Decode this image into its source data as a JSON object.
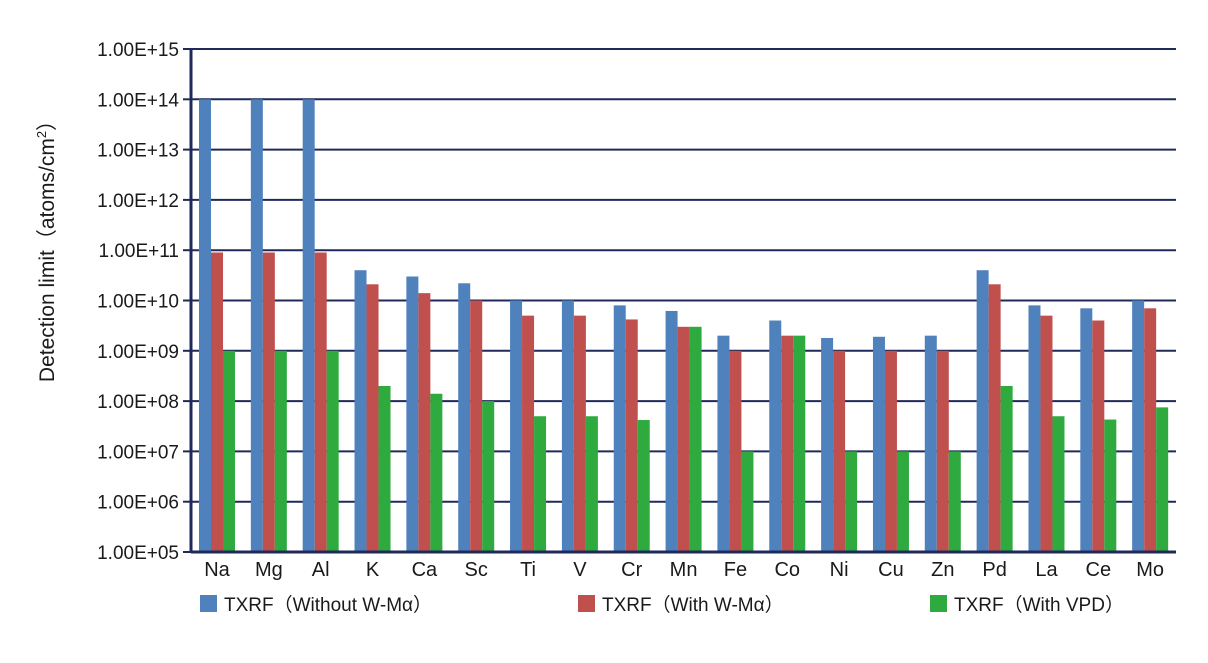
{
  "chart_data": {
    "type": "bar",
    "scale": "log",
    "ylabel": "Detection limit（atoms/cm",
    "ylabel_superscript": "2",
    "ylabel_close": "）",
    "xlabel": "",
    "ylim": [
      100000,
      1000000000000000
    ],
    "y_ticks": [
      {
        "label": "1.00E+05",
        "value": 100000
      },
      {
        "label": "1.00E+06",
        "value": 1000000
      },
      {
        "label": "1.00E+07",
        "value": 10000000
      },
      {
        "label": "1.00E+08",
        "value": 100000000
      },
      {
        "label": "1.00E+09",
        "value": 1000000000
      },
      {
        "label": "1.00E+10",
        "value": 10000000000
      },
      {
        "label": "1.00E+11",
        "value": 100000000000
      },
      {
        "label": "1.00E+12",
        "value": 1000000000000
      },
      {
        "label": "1.00E+13",
        "value": 10000000000000
      },
      {
        "label": "1.00E+14",
        "value": 100000000000000
      },
      {
        "label": "1.00E+15",
        "value": 1000000000000000
      }
    ],
    "grid": true,
    "legend_position": "bottom",
    "categories": [
      "Na",
      "Mg",
      "Al",
      "K",
      "Ca",
      "Sc",
      "Ti",
      "V",
      "Cr",
      "Mn",
      "Fe",
      "Co",
      "Ni",
      "Cu",
      "Zn",
      "Pd",
      "La",
      "Ce",
      "Mo"
    ],
    "series": [
      {
        "name": "TXRF（Without W-Mα）",
        "color": "#4f81bd",
        "values": [
          100000000000000.0,
          100000000000000.0,
          100000000000000.0,
          40000000000.0,
          30000000000.0,
          22000000000.0,
          10000000000.0,
          10000000000.0,
          8000000000.0,
          6200000000.0,
          2000000000.0,
          4000000000.0,
          1800000000.0,
          1900000000.0,
          2000000000.0,
          40000000000.0,
          8000000000.0,
          7000000000.0,
          10000000000.0
        ]
      },
      {
        "name": "TXRF（With W-Mα）",
        "color": "#c0504d",
        "values": [
          90000000000.0,
          90000000000.0,
          90000000000.0,
          21000000000.0,
          14000000000.0,
          10000000000.0,
          5000000000.0,
          5000000000.0,
          4200000000.0,
          3000000000.0,
          1000000000.0,
          2000000000.0,
          1000000000.0,
          1000000000.0,
          1000000000.0,
          21000000000.0,
          5000000000.0,
          4000000000.0,
          7000000000.0
        ]
      },
      {
        "name": "TXRF（With VPD）",
        "color": "#2eaa3f",
        "values": [
          1000000000.0,
          1000000000.0,
          1000000000.0,
          200000000.0,
          140000000.0,
          100000000.0,
          50000000.0,
          50000000.0,
          42000000.0,
          3000000000.0,
          10000000.0,
          2000000000.0,
          10000000.0,
          10000000.0,
          10000000.0,
          200000000.0,
          50000000.0,
          43000000.0,
          75000000.0
        ]
      }
    ],
    "colors": {
      "grid": "#1f2a5a",
      "axis": "#1f2a5a"
    }
  }
}
